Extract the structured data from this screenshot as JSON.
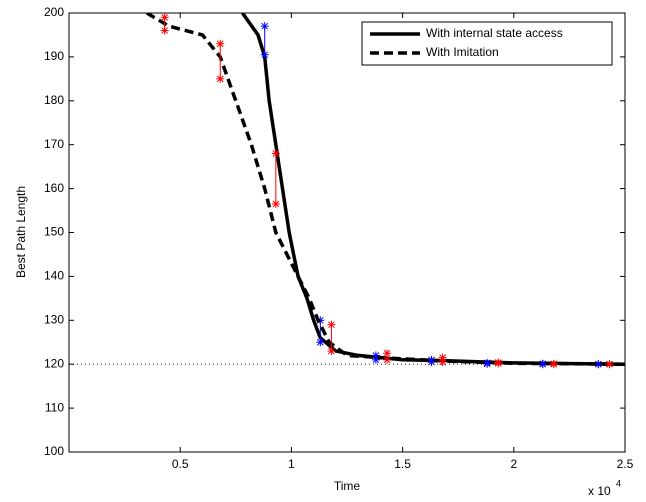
{
  "chart_data": {
    "type": "line",
    "x_label": "Time",
    "y_label": "Best Path Length",
    "x_multiplier": "x 10",
    "x_multiplier_exponent": "4",
    "xlim": [
      0,
      2.5
    ],
    "ylim": [
      100,
      200
    ],
    "xticks": [
      0.5,
      1,
      1.5,
      2,
      2.5
    ],
    "yticks": [
      100,
      110,
      120,
      130,
      140,
      150,
      160,
      170,
      180,
      190,
      200
    ],
    "reference_line": 120,
    "legend": "upper right",
    "series": [
      {
        "name": "With internal state access",
        "color": "#000000",
        "style": "solid",
        "x": [
          0.78,
          0.85,
          0.88,
          0.9,
          0.93,
          0.96,
          0.99,
          1.03,
          1.07,
          1.1,
          1.13,
          1.2,
          1.3,
          1.5,
          1.7,
          2.0,
          2.5
        ],
        "values": [
          200,
          195,
          190,
          180,
          170,
          160,
          150,
          140,
          135,
          130,
          126,
          123,
          122,
          121,
          120.8,
          120.3,
          120
        ],
        "error_color": "#0000ff",
        "error_x": [
          0.88,
          1.13,
          1.38,
          1.63,
          1.88,
          2.13,
          2.38
        ],
        "error_low": [
          190.5,
          125,
          121,
          120.5,
          120.1,
          120,
          120
        ],
        "error_high": [
          197,
          130,
          122,
          121,
          120.3,
          120.1,
          120
        ]
      },
      {
        "name": "With Imitation",
        "color": "#000000",
        "style": "dashed",
        "x": [
          0.35,
          0.45,
          0.6,
          0.68,
          0.75,
          0.82,
          0.88,
          0.93,
          0.98,
          1.03,
          1.08,
          1.12,
          1.17,
          1.25,
          1.4,
          1.7,
          2.0,
          2.5
        ],
        "values": [
          200,
          197,
          195,
          190,
          180,
          170,
          160,
          150,
          145,
          140,
          135,
          130,
          125,
          122,
          121.5,
          120.7,
          120.2,
          120
        ],
        "error_color": "#ff0000",
        "error_x": [
          0.43,
          0.68,
          0.93,
          1.18,
          1.43,
          1.68,
          1.93,
          2.18,
          2.43
        ],
        "error_low": [
          196,
          185,
          156.5,
          123,
          121,
          120.5,
          120.2,
          120,
          120
        ],
        "error_high": [
          199,
          193,
          168,
          129,
          122.5,
          121.5,
          120.4,
          120.1,
          120
        ]
      }
    ]
  }
}
